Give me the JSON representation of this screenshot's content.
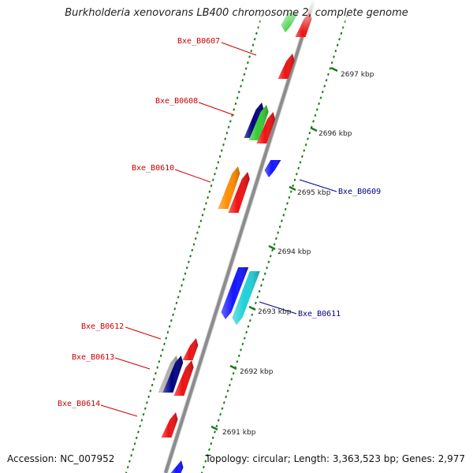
{
  "title": "Burkholderia xenovorans LB400 chromosome 2, complete genome",
  "footer": {
    "accession": "Accession: NC_007952",
    "summary": "Topology: circular; Length: 3,363,523 bp; Genes: 2,977"
  },
  "colors": {
    "backbone": "#8c8c8c",
    "ticks": "#1a7a1a",
    "forward_label": "#cc0000",
    "reverse_label": "#00008b"
  },
  "scale_labels": [
    {
      "id": "2697",
      "text": "2697 kbp"
    },
    {
      "id": "2696",
      "text": "2696 kbp"
    },
    {
      "id": "2695",
      "text": "2695 kbp"
    },
    {
      "id": "2694",
      "text": "2694 kbp"
    },
    {
      "id": "2693",
      "text": "2693 kbp"
    },
    {
      "id": "2692",
      "text": "2692 kbp"
    },
    {
      "id": "2691",
      "text": "2691 kbp"
    }
  ],
  "gene_labels": [
    {
      "id": "b0607",
      "text": "Bxe_B0607",
      "strand": "forward"
    },
    {
      "id": "b0608",
      "text": "Bxe_B0608",
      "strand": "forward"
    },
    {
      "id": "b0610",
      "text": "Bxe_B0610",
      "strand": "forward"
    },
    {
      "id": "b0609",
      "text": "Bxe_B0609",
      "strand": "reverse"
    },
    {
      "id": "b0611",
      "text": "Bxe_B0611",
      "strand": "reverse"
    },
    {
      "id": "b0612",
      "text": "Bxe_B0612",
      "strand": "forward"
    },
    {
      "id": "b0613",
      "text": "Bxe_B0613",
      "strand": "forward"
    },
    {
      "id": "b0614",
      "text": "Bxe_B0614",
      "strand": "forward"
    }
  ],
  "features": [
    {
      "id": "top-green",
      "color": "#33cc33",
      "strand": "forward"
    },
    {
      "id": "top-red",
      "color": "#ee1111",
      "strand": "forward"
    },
    {
      "id": "b0607-red",
      "color": "#ee1111",
      "strand": "forward"
    },
    {
      "id": "b0608-navy",
      "color": "#000080",
      "strand": "forward"
    },
    {
      "id": "b0608-green",
      "color": "#33cc33",
      "strand": "forward"
    },
    {
      "id": "b0608-red",
      "color": "#ee1111",
      "strand": "forward"
    },
    {
      "id": "b0609-blue",
      "color": "#1414ff",
      "strand": "reverse"
    },
    {
      "id": "b0610-orange",
      "color": "#ff8c00",
      "strand": "forward"
    },
    {
      "id": "b0610-red",
      "color": "#ee1111",
      "strand": "forward"
    },
    {
      "id": "b0611-blue",
      "color": "#1414ff",
      "strand": "reverse"
    },
    {
      "id": "b0611-cyan",
      "color": "#20d0d8",
      "strand": "reverse"
    },
    {
      "id": "b0612-red",
      "color": "#ee1111",
      "strand": "forward"
    },
    {
      "id": "b0613-gray",
      "color": "#b0b0b0",
      "strand": "forward"
    },
    {
      "id": "b0613-navy",
      "color": "#000080",
      "strand": "forward"
    },
    {
      "id": "b0613-red",
      "color": "#ee1111",
      "strand": "forward"
    },
    {
      "id": "b0614-red",
      "color": "#ee1111",
      "strand": "forward"
    },
    {
      "id": "bottom-blue",
      "color": "#1414ff",
      "strand": "forward"
    }
  ]
}
